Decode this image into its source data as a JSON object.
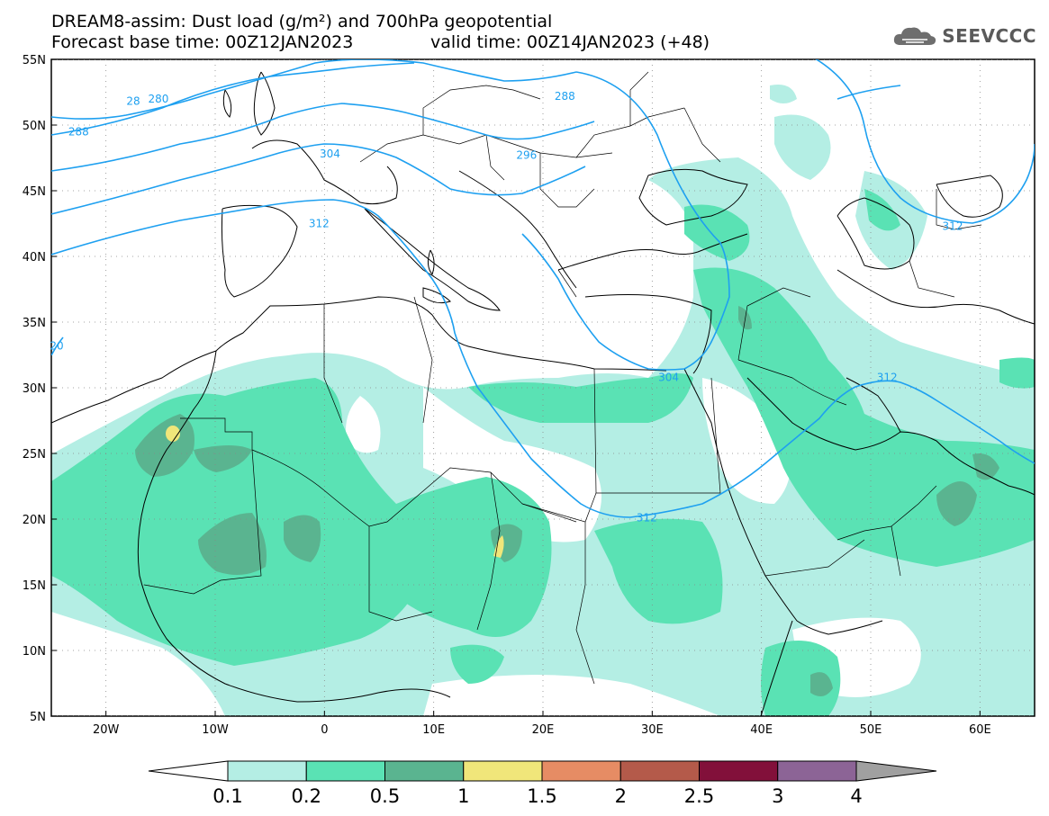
{
  "header": {
    "title_line1": "DREAM8-assim: Dust load (g/m²) and 700hPa geopotential",
    "title_line2_left": "Forecast base time: 00Z12JAN2023",
    "title_line2_right": "valid time: 00Z14JAN2023 (+48)"
  },
  "logo": {
    "text": "SEEVCCC",
    "icon": "cloud-icon"
  },
  "map": {
    "lat_labels": [
      "55N",
      "50N",
      "45N",
      "40N",
      "35N",
      "30N",
      "25N",
      "20N",
      "15N",
      "10N",
      "5N"
    ],
    "lat_values": [
      55,
      50,
      45,
      40,
      35,
      30,
      25,
      20,
      15,
      10,
      5
    ],
    "lon_labels": [
      "20W",
      "10W",
      "0",
      "10E",
      "20E",
      "30E",
      "40E",
      "50E",
      "60E"
    ],
    "lon_values": [
      -20,
      -10,
      0,
      10,
      20,
      30,
      40,
      50,
      60
    ],
    "lon_range": [
      -25,
      65
    ],
    "lat_range": [
      5,
      55
    ],
    "contour_labels": [
      {
        "text": "28",
        "lon": -17.5,
        "lat": 51.8
      },
      {
        "text": "280",
        "lon": -15.2,
        "lat": 52.0
      },
      {
        "text": "288",
        "lon": -22.5,
        "lat": 49.5
      },
      {
        "text": "288",
        "lon": 22.0,
        "lat": 52.2
      },
      {
        "text": "296",
        "lon": 18.5,
        "lat": 47.7
      },
      {
        "text": "304",
        "lon": 0.5,
        "lat": 47.8
      },
      {
        "text": "312",
        "lon": -0.5,
        "lat": 42.5
      },
      {
        "text": "304",
        "lon": 31.5,
        "lat": 30.8
      },
      {
        "text": "312",
        "lon": 51.5,
        "lat": 30.8
      },
      {
        "text": "312",
        "lon": 57.5,
        "lat": 42.3
      },
      {
        "text": "312",
        "lon": 29.5,
        "lat": 20.1
      },
      {
        "text": "20",
        "lon": -24.5,
        "lat": 33.2
      }
    ]
  },
  "colorbar": {
    "labels": [
      "0.1",
      "0.2",
      "0.5",
      "1",
      "1.5",
      "2",
      "2.5",
      "3",
      "4"
    ],
    "colors": [
      "#b4eee4",
      "#5ae2b4",
      "#5ab490",
      "#f0e67a",
      "#e68c64",
      "#b45a4a",
      "#82103a",
      "#8c6496",
      "#a0a0a0"
    ]
  }
}
